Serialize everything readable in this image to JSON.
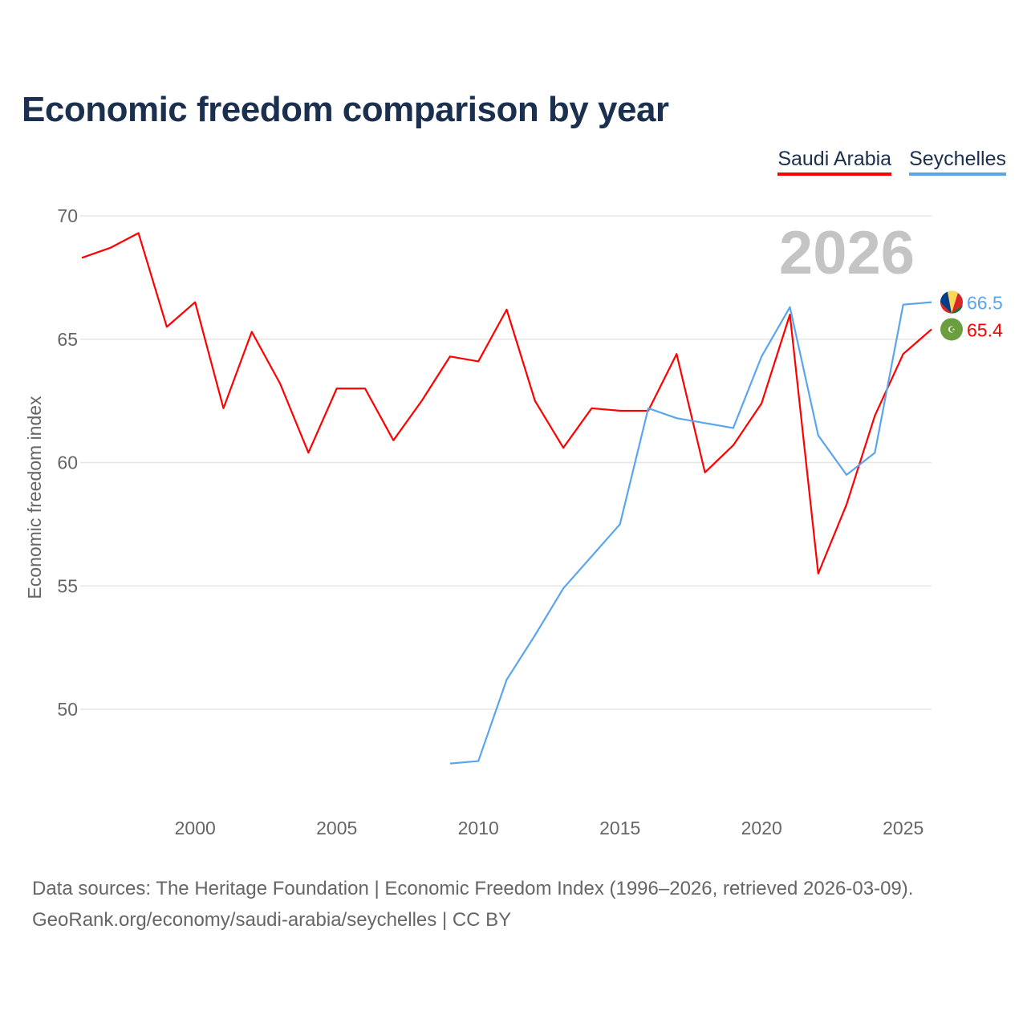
{
  "title": "Economic freedom comparison by year",
  "legend": [
    {
      "name": "Saudi Arabia",
      "color": "#ff0000"
    },
    {
      "name": "Seychelles",
      "color": "#5aa5eb"
    }
  ],
  "source_lines": [
    "Data sources: The Heritage Foundation | Economic Freedom Index (1996–2026, retrieved 2026-03-09).",
    "GeoRank.org/economy/saudi-arabia/seychelles | CC BY"
  ],
  "chart_data": {
    "type": "line",
    "title": "Economic freedom comparison by year",
    "ylabel": "Economic freedom index",
    "xlabel": "",
    "year_watermark": "2026",
    "xlim": [
      1996,
      2026
    ],
    "ylim": [
      45.9,
      70
    ],
    "x_ticks": [
      2000,
      2005,
      2010,
      2015,
      2020,
      2025
    ],
    "y_ticks": [
      50,
      55,
      60,
      65,
      70
    ],
    "grid": true,
    "legend_position": "top-right",
    "series": [
      {
        "name": "Saudi Arabia",
        "color": "#ff0000",
        "end_label": "65.4",
        "flag_icon": "saudi-arabia-flag-icon",
        "x": [
          1996,
          1997,
          1998,
          1999,
          2000,
          2001,
          2002,
          2003,
          2004,
          2005,
          2006,
          2007,
          2008,
          2009,
          2010,
          2011,
          2012,
          2013,
          2014,
          2015,
          2016,
          2017,
          2018,
          2019,
          2020,
          2021,
          2022,
          2023,
          2024,
          2025,
          2026
        ],
        "values": [
          68.3,
          68.7,
          69.3,
          65.5,
          66.5,
          62.2,
          65.3,
          63.2,
          60.4,
          63.0,
          63.0,
          60.9,
          62.5,
          64.3,
          64.1,
          66.2,
          62.5,
          60.6,
          62.2,
          62.1,
          62.1,
          64.4,
          59.6,
          60.7,
          62.4,
          66.0,
          55.5,
          58.3,
          61.9,
          64.4,
          65.4
        ]
      },
      {
        "name": "Seychelles",
        "color": "#5aa5eb",
        "end_label": "66.5",
        "flag_icon": "seychelles-flag-icon",
        "x": [
          2009,
          2010,
          2011,
          2012,
          2013,
          2014,
          2015,
          2016,
          2017,
          2018,
          2019,
          2020,
          2021,
          2022,
          2023,
          2024,
          2025,
          2026
        ],
        "values": [
          47.8,
          47.9,
          51.2,
          53.0,
          54.9,
          56.2,
          57.5,
          62.2,
          61.8,
          61.6,
          61.4,
          64.3,
          66.3,
          61.1,
          59.5,
          60.4,
          66.4,
          66.5
        ]
      }
    ]
  }
}
